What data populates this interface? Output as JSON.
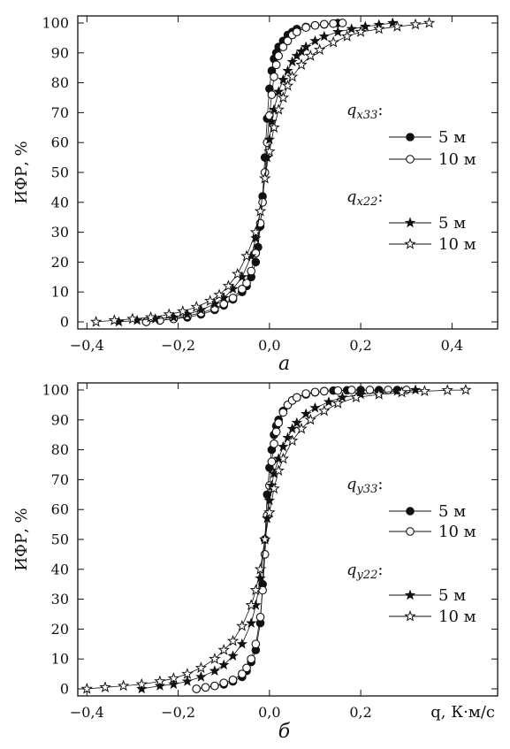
{
  "chart_data": [
    {
      "type": "scatter",
      "panel_label": "а",
      "ylabel": "ИФР, %",
      "xlabel": "",
      "xlim": [
        -0.42,
        0.5
      ],
      "ylim": [
        0,
        100
      ],
      "xticks": [
        -0.4,
        -0.2,
        0.0,
        0.2,
        0.4
      ],
      "xtick_labels": [
        "−0,4",
        "−0,2",
        "0,0",
        "0,2",
        "0,4"
      ],
      "yticks": [
        0,
        10,
        20,
        30,
        40,
        50,
        60,
        70,
        80,
        90,
        100
      ],
      "ytick_labels": [
        "0",
        "10",
        "20",
        "30",
        "40",
        "50",
        "60",
        "70",
        "80",
        "90",
        "100"
      ],
      "legend": {
        "groups": [
          {
            "title": "q",
            "title_sub": "x33",
            "title_suffix": ":",
            "items": [
              {
                "label": "5 м",
                "marker": "filled-circle"
              },
              {
                "label": "10 м",
                "marker": "open-circle"
              }
            ]
          },
          {
            "title": "q",
            "title_sub": "x22",
            "title_suffix": ":",
            "items": [
              {
                "label": "5 м",
                "marker": "filled-star"
              },
              {
                "label": "10 м",
                "marker": "open-star"
              }
            ]
          }
        ]
      },
      "series": [
        {
          "name": "5 м",
          "group": "x33",
          "marker": "filled-circle",
          "x": [
            -0.27,
            -0.24,
            -0.21,
            -0.18,
            -0.15,
            -0.12,
            -0.1,
            -0.08,
            -0.06,
            -0.05,
            -0.04,
            -0.03,
            -0.025,
            -0.02,
            -0.015,
            -0.01,
            -0.005,
            0.0,
            0.005,
            0.01,
            0.015,
            0.02,
            0.03,
            0.04,
            0.05,
            0.06,
            0.08,
            0.1,
            0.12,
            0.14,
            0.15
          ],
          "y": [
            0,
            0.5,
            1,
            1.5,
            2.5,
            4,
            5.5,
            7.5,
            10,
            12,
            15,
            20,
            25,
            32,
            42,
            55,
            68,
            78,
            84,
            88,
            90,
            92,
            94,
            96,
            97,
            98,
            98.7,
            99.2,
            99.5,
            99.8,
            100
          ]
        },
        {
          "name": "10 м",
          "group": "x33",
          "marker": "open-circle",
          "x": [
            -0.27,
            -0.24,
            -0.21,
            -0.18,
            -0.15,
            -0.12,
            -0.1,
            -0.08,
            -0.06,
            -0.05,
            -0.04,
            -0.03,
            -0.02,
            -0.015,
            -0.01,
            -0.005,
            0.0,
            0.005,
            0.01,
            0.015,
            0.02,
            0.03,
            0.04,
            0.05,
            0.06,
            0.08,
            0.1,
            0.12,
            0.14,
            0.16
          ],
          "y": [
            0,
            0.5,
            1,
            2,
            3,
            4.5,
            6,
            8,
            11,
            13,
            17,
            23,
            33,
            40,
            50,
            60,
            69,
            76,
            82,
            86,
            89,
            92,
            94,
            96,
            97,
            98.5,
            99.2,
            99.6,
            99.8,
            100
          ]
        },
        {
          "name": "5 м",
          "group": "x22",
          "marker": "filled-star",
          "x": [
            -0.33,
            -0.29,
            -0.25,
            -0.21,
            -0.18,
            -0.15,
            -0.12,
            -0.1,
            -0.08,
            -0.06,
            -0.04,
            -0.03,
            -0.02,
            -0.01,
            -0.005,
            0.0,
            0.005,
            0.01,
            0.02,
            0.03,
            0.04,
            0.05,
            0.06,
            0.07,
            0.08,
            0.1,
            0.12,
            0.15,
            0.18,
            0.21,
            0.24,
            0.27
          ],
          "y": [
            0,
            0.5,
            1,
            1.5,
            2.5,
            4,
            6,
            8,
            11,
            15,
            22,
            28,
            37,
            48,
            55,
            61,
            67,
            71,
            77,
            81,
            84,
            87,
            89,
            90.5,
            92,
            94,
            95.5,
            97,
            98,
            98.8,
            99.4,
            100
          ]
        },
        {
          "name": "10 м",
          "group": "x22",
          "marker": "open-star",
          "x": [
            -0.38,
            -0.34,
            -0.3,
            -0.26,
            -0.22,
            -0.19,
            -0.16,
            -0.13,
            -0.11,
            -0.09,
            -0.07,
            -0.05,
            -0.03,
            -0.02,
            -0.01,
            0.0,
            0.01,
            0.02,
            0.03,
            0.04,
            0.05,
            0.07,
            0.09,
            0.11,
            0.14,
            0.17,
            0.2,
            0.24,
            0.28,
            0.32,
            0.35
          ],
          "y": [
            0,
            0.5,
            1,
            1.5,
            2.5,
            3.5,
            5,
            7,
            9,
            12,
            16,
            22,
            30,
            37,
            48,
            57,
            65,
            71,
            75,
            79,
            82,
            86,
            89,
            91,
            93.5,
            95.5,
            97,
            98,
            98.8,
            99.5,
            100
          ]
        }
      ]
    },
    {
      "type": "scatter",
      "panel_label": "б",
      "ylabel": "ИФР, %",
      "xlabel": "q, К·м/с",
      "xlim": [
        -0.42,
        0.5
      ],
      "ylim": [
        0,
        100
      ],
      "xticks": [
        -0.4,
        -0.2,
        0.0,
        0.2
      ],
      "xtick_labels": [
        "−0,4",
        "−0,2",
        "0,0",
        "0,2"
      ],
      "yticks": [
        0,
        10,
        20,
        30,
        40,
        50,
        60,
        70,
        80,
        90,
        100
      ],
      "ytick_labels": [
        "0",
        "10",
        "20",
        "30",
        "40",
        "50",
        "60",
        "70",
        "80",
        "90",
        "100"
      ],
      "legend": {
        "groups": [
          {
            "title": "q",
            "title_sub": "y33",
            "title_suffix": ":",
            "items": [
              {
                "label": "5 м",
                "marker": "filled-circle"
              },
              {
                "label": "10 м",
                "marker": "open-circle"
              }
            ]
          },
          {
            "title": "q",
            "title_sub": "y22",
            "title_suffix": ":",
            "items": [
              {
                "label": "5 м",
                "marker": "filled-star"
              },
              {
                "label": "10 м",
                "marker": "open-star"
              }
            ]
          }
        ]
      },
      "series": [
        {
          "name": "5 м",
          "group": "y33",
          "marker": "filled-circle",
          "x": [
            -0.16,
            -0.14,
            -0.12,
            -0.1,
            -0.08,
            -0.06,
            -0.05,
            -0.04,
            -0.03,
            -0.02,
            -0.015,
            -0.01,
            -0.005,
            0.0,
            0.005,
            0.01,
            0.015,
            0.02,
            0.03,
            0.04,
            0.05,
            0.06,
            0.08,
            0.1,
            0.12,
            0.14,
            0.17,
            0.2,
            0.24,
            0.28
          ],
          "y": [
            0,
            0.5,
            1,
            1.5,
            2.5,
            4,
            6,
            9,
            13,
            22,
            35,
            50,
            65,
            74,
            80,
            85,
            88,
            90,
            93,
            95,
            96.5,
            97.5,
            98.5,
            99.2,
            99.6,
            99.8,
            99.9,
            100,
            100,
            100
          ]
        },
        {
          "name": "10 м",
          "group": "y33",
          "marker": "open-circle",
          "x": [
            -0.16,
            -0.14,
            -0.12,
            -0.1,
            -0.08,
            -0.06,
            -0.05,
            -0.04,
            -0.03,
            -0.02,
            -0.015,
            -0.01,
            -0.005,
            0.0,
            0.005,
            0.01,
            0.015,
            0.02,
            0.03,
            0.04,
            0.05,
            0.06,
            0.08,
            0.1,
            0.12,
            0.15,
            0.18,
            0.22,
            0.26,
            0.3
          ],
          "y": [
            0,
            0.5,
            1,
            2,
            3,
            5,
            7,
            10,
            15,
            24,
            33,
            45,
            58,
            68,
            76,
            82,
            86,
            89,
            92.5,
            95,
            96.5,
            97.5,
            98.8,
            99.3,
            99.6,
            99.8,
            100,
            100,
            100,
            100
          ]
        },
        {
          "name": "5 м",
          "group": "y22",
          "marker": "filled-star",
          "x": [
            -0.28,
            -0.24,
            -0.21,
            -0.18,
            -0.15,
            -0.12,
            -0.1,
            -0.08,
            -0.06,
            -0.04,
            -0.03,
            -0.02,
            -0.01,
            -0.005,
            0.0,
            0.005,
            0.01,
            0.02,
            0.03,
            0.04,
            0.05,
            0.06,
            0.08,
            0.1,
            0.13,
            0.16,
            0.2,
            0.24,
            0.28,
            0.32
          ],
          "y": [
            0,
            1,
            1.5,
            2.5,
            4,
            6,
            8,
            11,
            15,
            22,
            28,
            37,
            50,
            57,
            63,
            68,
            72,
            77,
            81,
            84,
            87,
            89,
            92,
            94,
            96,
            97.5,
            98.5,
            99.2,
            99.6,
            100
          ]
        },
        {
          "name": "10 м",
          "group": "y22",
          "marker": "open-star",
          "x": [
            -0.4,
            -0.36,
            -0.32,
            -0.28,
            -0.24,
            -0.21,
            -0.18,
            -0.15,
            -0.12,
            -0.1,
            -0.08,
            -0.06,
            -0.04,
            -0.03,
            -0.02,
            -0.01,
            0.0,
            0.01,
            0.02,
            0.03,
            0.05,
            0.07,
            0.09,
            0.12,
            0.15,
            0.19,
            0.24,
            0.29,
            0.34,
            0.39,
            0.43
          ],
          "y": [
            0,
            0.5,
            1,
            1.5,
            2.5,
            3.5,
            5,
            7,
            10,
            13,
            16,
            21,
            28,
            33,
            40,
            50,
            59,
            67,
            73,
            77,
            83,
            87,
            90,
            93,
            95.5,
            97.5,
            98.5,
            99.2,
            99.6,
            99.9,
            100
          ]
        }
      ]
    }
  ]
}
